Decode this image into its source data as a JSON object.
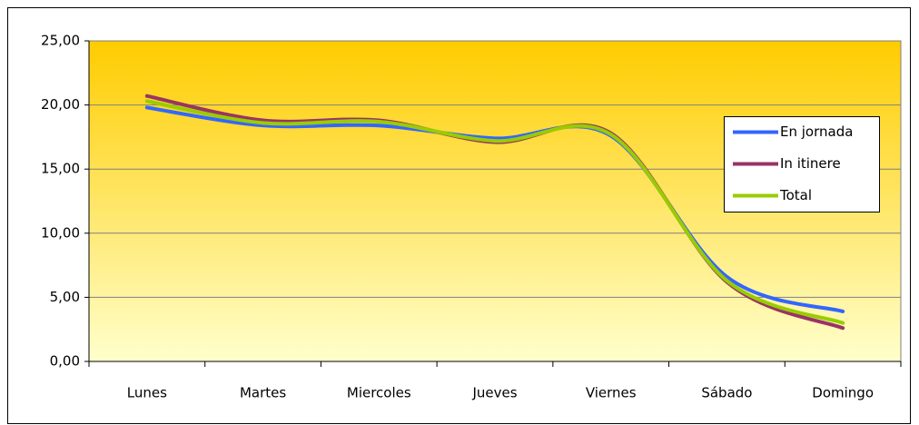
{
  "chart_data": {
    "type": "line",
    "categories": [
      "Lunes",
      "Martes",
      "Miercoles",
      "Jueves",
      "Viernes",
      "Sábado",
      "Domingo"
    ],
    "series": [
      {
        "name": "En jornada",
        "color": "#3366ff",
        "values": [
          19.8,
          18.4,
          18.4,
          17.4,
          17.6,
          6.6,
          3.9
        ]
      },
      {
        "name": "In itinere",
        "color": "#993366",
        "values": [
          20.7,
          18.8,
          18.8,
          17.1,
          17.8,
          6.2,
          2.6
        ]
      },
      {
        "name": "Total",
        "color": "#99cc00",
        "values": [
          20.3,
          18.6,
          18.7,
          17.2,
          17.7,
          6.3,
          3.0
        ]
      }
    ],
    "ylim": [
      0,
      25
    ],
    "yticks": [
      {
        "value": 0,
        "label": "0,00"
      },
      {
        "value": 5,
        "label": "5,00"
      },
      {
        "value": 10,
        "label": "10,00"
      },
      {
        "value": 15,
        "label": "15,00"
      },
      {
        "value": 20,
        "label": "20,00"
      },
      {
        "value": 25,
        "label": "25,00"
      }
    ],
    "grid": true,
    "smooth": true,
    "legend": "right"
  }
}
